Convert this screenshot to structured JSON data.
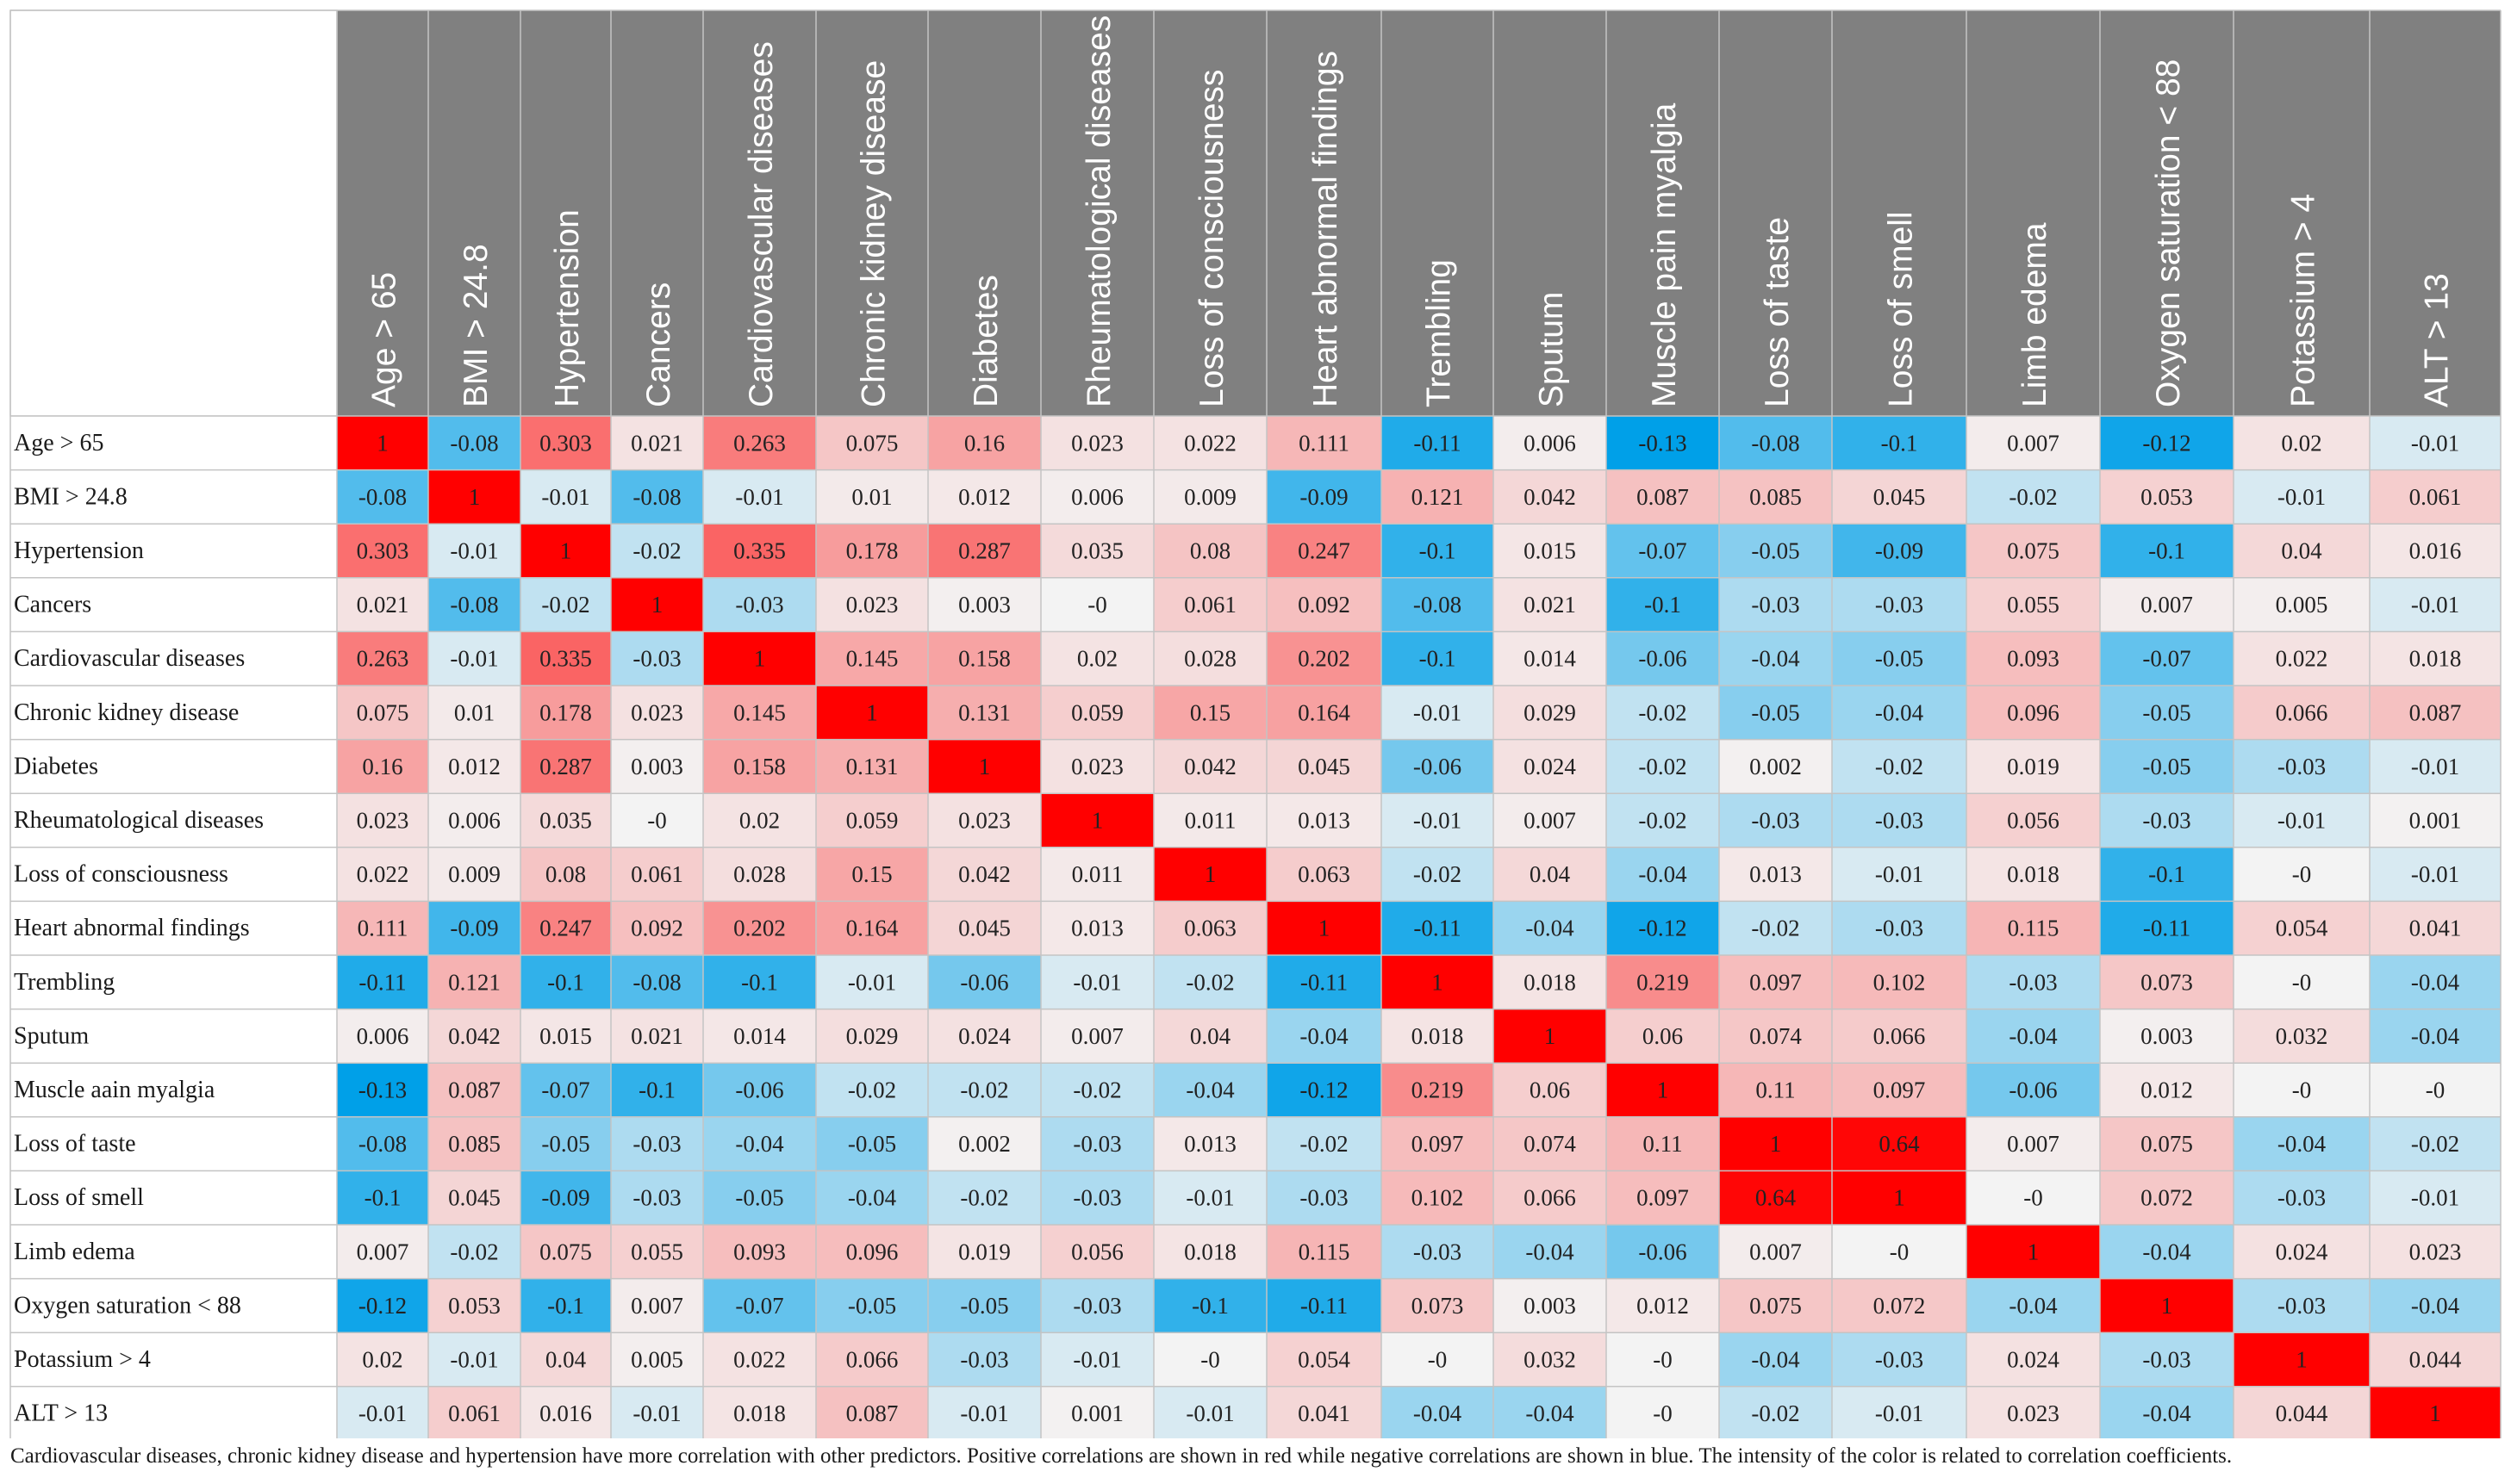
{
  "chart_data": {
    "type": "heatmap",
    "title": "",
    "color_scale": {
      "positive": "#ff0000",
      "negative": "#00a0e8",
      "zero": "#f3f3f3",
      "header_bg": "#808080"
    },
    "columns": [
      "Age > 65",
      "BMI > 24.8",
      "Hypertension",
      "Cancers",
      "Cardiovascular diseases",
      "Chronic kidney disease",
      "Diabetes",
      "Rheumatological diseases",
      "Loss of consciousness",
      "Heart abnormal findings",
      "Trembling",
      "Sputum",
      "Muscle pain myalgia",
      "Loss of taste",
      "Loss of smell",
      "Limb edema",
      "Oxygen saturation < 88",
      "Potassium > 4",
      "ALT > 13"
    ],
    "rows": [
      "Age > 65",
      "BMI > 24.8",
      "Hypertension",
      "Cancers",
      "Cardiovascular diseases",
      "Chronic kidney disease",
      "Diabetes",
      "Rheumatological diseases",
      "Loss of consciousness",
      "Heart abnormal findings",
      "Trembling",
      "Sputum",
      "Muscle aain myalgia",
      "Loss of taste",
      "Loss of smell",
      "Limb edema",
      "Oxygen saturation < 88",
      "Potassium > 4",
      "ALT > 13"
    ],
    "values": [
      [
        "1",
        "-0.08",
        "0.303",
        "0.021",
        "0.263",
        "0.075",
        "0.16",
        "0.023",
        "0.022",
        "0.111",
        "-0.11",
        "0.006",
        "-0.13",
        "-0.08",
        "-0.1",
        "0.007",
        "-0.12",
        "0.02",
        "-0.01"
      ],
      [
        "-0.08",
        "1",
        "-0.01",
        "-0.08",
        "-0.01",
        "0.01",
        "0.012",
        "0.006",
        "0.009",
        "-0.09",
        "0.121",
        "0.042",
        "0.087",
        "0.085",
        "0.045",
        "-0.02",
        "0.053",
        "-0.01",
        "0.061"
      ],
      [
        "0.303",
        "-0.01",
        "1",
        "-0.02",
        "0.335",
        "0.178",
        "0.287",
        "0.035",
        "0.08",
        "0.247",
        "-0.1",
        "0.015",
        "-0.07",
        "-0.05",
        "-0.09",
        "0.075",
        "-0.1",
        "0.04",
        "0.016"
      ],
      [
        "0.021",
        "-0.08",
        "-0.02",
        "1",
        "-0.03",
        "0.023",
        "0.003",
        "-0",
        "0.061",
        "0.092",
        "-0.08",
        "0.021",
        "-0.1",
        "-0.03",
        "-0.03",
        "0.055",
        "0.007",
        "0.005",
        "-0.01"
      ],
      [
        "0.263",
        "-0.01",
        "0.335",
        "-0.03",
        "1",
        "0.145",
        "0.158",
        "0.02",
        "0.028",
        "0.202",
        "-0.1",
        "0.014",
        "-0.06",
        "-0.04",
        "-0.05",
        "0.093",
        "-0.07",
        "0.022",
        "0.018"
      ],
      [
        "0.075",
        "0.01",
        "0.178",
        "0.023",
        "0.145",
        "1",
        "0.131",
        "0.059",
        "0.15",
        "0.164",
        "-0.01",
        "0.029",
        "-0.02",
        "-0.05",
        "-0.04",
        "0.096",
        "-0.05",
        "0.066",
        "0.087"
      ],
      [
        "0.16",
        "0.012",
        "0.287",
        "0.003",
        "0.158",
        "0.131",
        "1",
        "0.023",
        "0.042",
        "0.045",
        "-0.06",
        "0.024",
        "-0.02",
        "0.002",
        "-0.02",
        "0.019",
        "-0.05",
        "-0.03",
        "-0.01"
      ],
      [
        "0.023",
        "0.006",
        "0.035",
        "-0",
        "0.02",
        "0.059",
        "0.023",
        "1",
        "0.011",
        "0.013",
        "-0.01",
        "0.007",
        "-0.02",
        "-0.03",
        "-0.03",
        "0.056",
        "-0.03",
        "-0.01",
        "0.001"
      ],
      [
        "0.022",
        "0.009",
        "0.08",
        "0.061",
        "0.028",
        "0.15",
        "0.042",
        "0.011",
        "1",
        "0.063",
        "-0.02",
        "0.04",
        "-0.04",
        "0.013",
        "-0.01",
        "0.018",
        "-0.1",
        "-0",
        "-0.01"
      ],
      [
        "0.111",
        "-0.09",
        "0.247",
        "0.092",
        "0.202",
        "0.164",
        "0.045",
        "0.013",
        "0.063",
        "1",
        "-0.11",
        "-0.04",
        "-0.12",
        "-0.02",
        "-0.03",
        "0.115",
        "-0.11",
        "0.054",
        "0.041"
      ],
      [
        "-0.11",
        "0.121",
        "-0.1",
        "-0.08",
        "-0.1",
        "-0.01",
        "-0.06",
        "-0.01",
        "-0.02",
        "-0.11",
        "1",
        "0.018",
        "0.219",
        "0.097",
        "0.102",
        "-0.03",
        "0.073",
        "-0",
        "-0.04"
      ],
      [
        "0.006",
        "0.042",
        "0.015",
        "0.021",
        "0.014",
        "0.029",
        "0.024",
        "0.007",
        "0.04",
        "-0.04",
        "0.018",
        "1",
        "0.06",
        "0.074",
        "0.066",
        "-0.04",
        "0.003",
        "0.032",
        "-0.04"
      ],
      [
        "-0.13",
        "0.087",
        "-0.07",
        "-0.1",
        "-0.06",
        "-0.02",
        "-0.02",
        "-0.02",
        "-0.04",
        "-0.12",
        "0.219",
        "0.06",
        "1",
        "0.11",
        "0.097",
        "-0.06",
        "0.012",
        "-0",
        "-0"
      ],
      [
        "-0.08",
        "0.085",
        "-0.05",
        "-0.03",
        "-0.04",
        "-0.05",
        "0.002",
        "-0.03",
        "0.013",
        "-0.02",
        "0.097",
        "0.074",
        "0.11",
        "1",
        "0.64",
        "0.007",
        "0.075",
        "-0.04",
        "-0.02"
      ],
      [
        "-0.1",
        "0.045",
        "-0.09",
        "-0.03",
        "-0.05",
        "-0.04",
        "-0.02",
        "-0.03",
        "-0.01",
        "-0.03",
        "0.102",
        "0.066",
        "0.097",
        "0.64",
        "1",
        "-0",
        "0.072",
        "-0.03",
        "-0.01"
      ],
      [
        "0.007",
        "-0.02",
        "0.075",
        "0.055",
        "0.093",
        "0.096",
        "0.019",
        "0.056",
        "0.018",
        "0.115",
        "-0.03",
        "-0.04",
        "-0.06",
        "0.007",
        "-0",
        "1",
        "-0.04",
        "0.024",
        "0.023"
      ],
      [
        "-0.12",
        "0.053",
        "-0.1",
        "0.007",
        "-0.07",
        "-0.05",
        "-0.05",
        "-0.03",
        "-0.1",
        "-0.11",
        "0.073",
        "0.003",
        "0.012",
        "0.075",
        "0.072",
        "-0.04",
        "1",
        "-0.03",
        "-0.04"
      ],
      [
        "0.02",
        "-0.01",
        "0.04",
        "0.005",
        "0.022",
        "0.066",
        "-0.03",
        "-0.01",
        "-0",
        "0.054",
        "-0",
        "0.032",
        "-0",
        "-0.04",
        "-0.03",
        "0.024",
        "-0.03",
        "1",
        "0.044"
      ],
      [
        "-0.01",
        "0.061",
        "0.016",
        "-0.01",
        "0.018",
        "0.087",
        "-0.01",
        "0.001",
        "-0.01",
        "0.041",
        "-0.04",
        "-0.04",
        "-0",
        "-0.02",
        "-0.01",
        "0.023",
        "-0.04",
        "0.044",
        "1"
      ]
    ]
  },
  "caption": "Cardiovascular diseases, chronic kidney disease and hypertension have more correlation with other predictors. Positive correlations are shown in red while negative correlations are shown in blue. The intensity of the color is related to correlation coefficients."
}
